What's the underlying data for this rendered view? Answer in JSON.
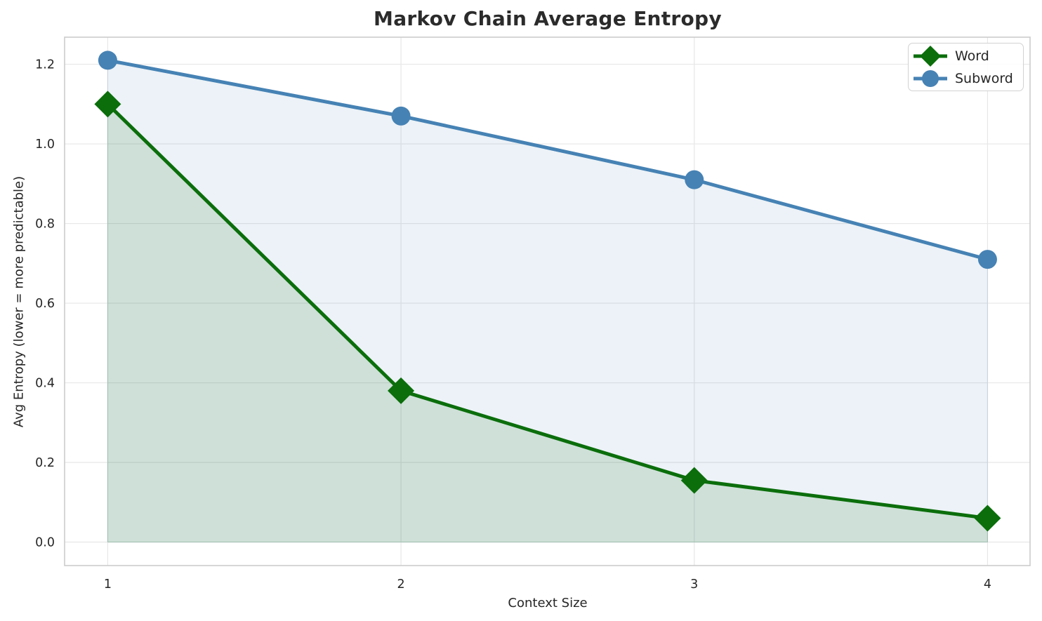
{
  "chart_data": {
    "type": "line",
    "title": "Markov Chain Average Entropy",
    "xlabel": "Context Size",
    "ylabel": "Avg Entropy (lower = more predictable)",
    "x": [
      1,
      2,
      3,
      4
    ],
    "series": [
      {
        "name": "Word",
        "marker": "diamond",
        "color": "#0b6e0b",
        "fill_alpha": 0.13,
        "values": [
          1.1,
          0.38,
          0.155,
          0.06
        ]
      },
      {
        "name": "Subword",
        "marker": "circle",
        "color": "#4682b4",
        "fill_alpha": 0.1,
        "values": [
          1.21,
          1.07,
          0.91,
          0.71
        ]
      }
    ],
    "xticks": [
      1,
      2,
      3,
      4
    ],
    "yticks": [
      0.0,
      0.2,
      0.4,
      0.6,
      0.8,
      1.0,
      1.2
    ],
    "xlim": [
      0.853,
      4.145
    ],
    "ylim": [
      -0.059,
      1.268
    ],
    "fill_baseline": 0,
    "grid": true,
    "grid_color": "#e7e7e7",
    "spine_color": "#cccccc",
    "text_color": "#262626",
    "legend_position": "upper right"
  }
}
